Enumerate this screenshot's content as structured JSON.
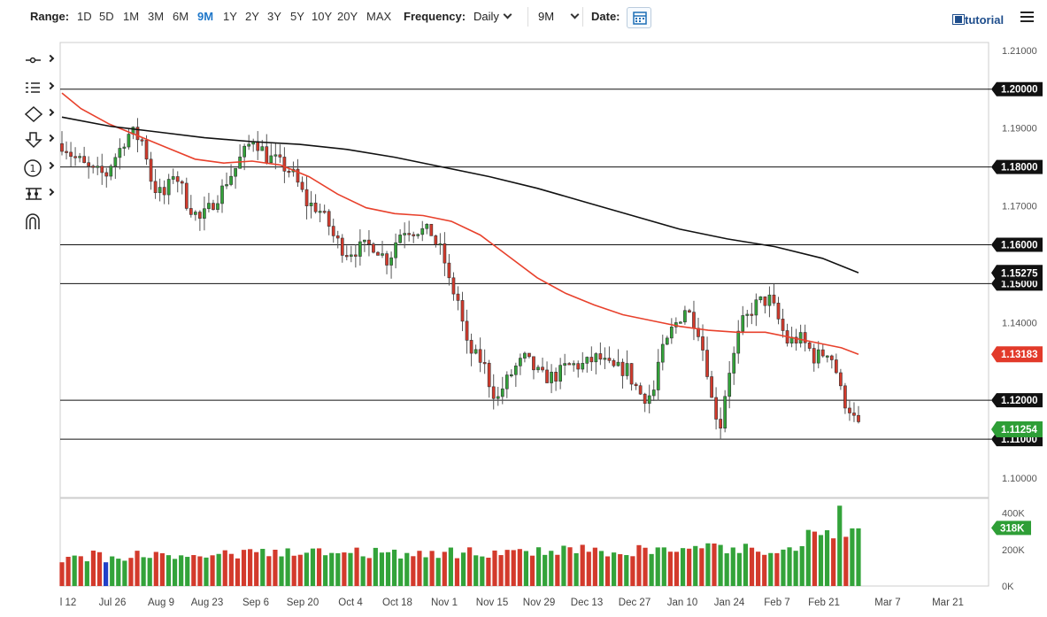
{
  "toolbar": {
    "range_label": "Range:",
    "ranges": [
      "1D",
      "5D",
      "1M",
      "3M",
      "6M",
      "9M",
      "1Y",
      "2Y",
      "3Y",
      "5Y",
      "10Y",
      "20Y",
      "MAX"
    ],
    "active_range": "9M",
    "frequency_label": "Frequency:",
    "frequency_value": "Daily",
    "period_value": "9M",
    "date_label": "Date:",
    "tutorial_label": "tutorial"
  },
  "sidebar_tools": [
    "crosshair-tool-icon",
    "indicators-icon",
    "shapes-icon",
    "arrow-tool-icon",
    "annotation-icon",
    "measure-tool-icon",
    "magnet-icon"
  ],
  "colors": {
    "up": "#33a33a",
    "down": "#d33a2c",
    "ma50": "#e8412c",
    "ma200": "#111111",
    "current_tag": "#2e9e36",
    "ma50_tag": "#e23a2a",
    "black_tag": "#111111"
  },
  "chart_data": {
    "type": "candlestick",
    "instrument_note": "",
    "frequency": "Daily",
    "ylim": [
      1.095,
      1.212
    ],
    "y_ticks": [
      "1.21000",
      "1.19000",
      "1.17000",
      "1.14000",
      "1.10000"
    ],
    "x_tick_labels": [
      "l 12",
      "Jul 26",
      "Aug 9",
      "Aug 23",
      "Sep 6",
      "Sep 20",
      "Oct 4",
      "Oct 18",
      "Nov 1",
      "Nov 15",
      "Nov 29",
      "Dec 13",
      "Dec 27",
      "Jan 10",
      "Jan 24",
      "Feb 7",
      "Feb 21",
      "Mar 7",
      "Mar 21"
    ],
    "horizontal_levels": [
      {
        "value": 1.2,
        "label": "1.20000"
      },
      {
        "value": 1.18,
        "label": "1.18000"
      },
      {
        "value": 1.16,
        "label": "1.16000"
      },
      {
        "value": 1.15,
        "label": "1.15000"
      },
      {
        "value": 1.12,
        "label": "1.12000"
      },
      {
        "value": 1.11,
        "label": "1.11000"
      }
    ],
    "tags": [
      {
        "value": 1.15275,
        "label": "1.15275",
        "kind": "ma200"
      },
      {
        "value": 1.13183,
        "label": "1.13183",
        "kind": "ma50"
      },
      {
        "value": 1.11254,
        "label": "1.11254",
        "kind": "current"
      }
    ],
    "moving_averages": [
      {
        "name": "",
        "kind": "ma50",
        "points": [
          [
            0,
            1.199
          ],
          [
            10,
            1.195
          ],
          [
            25,
            1.191
          ],
          [
            40,
            1.188
          ],
          [
            55,
            1.185
          ],
          [
            70,
            1.182
          ],
          [
            85,
            1.181
          ],
          [
            100,
            1.1815
          ],
          [
            115,
            1.1805
          ],
          [
            130,
            1.1775
          ],
          [
            145,
            1.173
          ],
          [
            160,
            1.1695
          ],
          [
            175,
            1.168
          ],
          [
            190,
            1.1675
          ],
          [
            205,
            1.166
          ],
          [
            220,
            1.1625
          ],
          [
            235,
            1.157
          ],
          [
            250,
            1.1515
          ],
          [
            265,
            1.1475
          ],
          [
            280,
            1.1445
          ],
          [
            295,
            1.142
          ],
          [
            310,
            1.1405
          ],
          [
            325,
            1.139
          ],
          [
            340,
            1.138
          ],
          [
            355,
            1.1375
          ],
          [
            370,
            1.1375
          ],
          [
            385,
            1.136
          ],
          [
            400,
            1.1345
          ],
          [
            410,
            1.1335
          ],
          [
            419,
            1.1318
          ]
        ]
      },
      {
        "name": "",
        "kind": "ma200",
        "points": [
          [
            0,
            1.1928
          ],
          [
            25,
            1.1905
          ],
          [
            50,
            1.189
          ],
          [
            75,
            1.1875
          ],
          [
            100,
            1.1865
          ],
          [
            125,
            1.1858
          ],
          [
            150,
            1.1845
          ],
          [
            175,
            1.1825
          ],
          [
            200,
            1.18
          ],
          [
            225,
            1.1775
          ],
          [
            250,
            1.1745
          ],
          [
            275,
            1.171
          ],
          [
            300,
            1.1675
          ],
          [
            325,
            1.164
          ],
          [
            350,
            1.1615
          ],
          [
            375,
            1.1595
          ],
          [
            400,
            1.1565
          ],
          [
            419,
            1.1528
          ]
        ]
      }
    ],
    "candles_note": "",
    "volume": {
      "y_ticks": [
        "400K",
        "200K",
        "0K"
      ],
      "last_label": "318K",
      "ylim": [
        0,
        480
      ]
    }
  }
}
